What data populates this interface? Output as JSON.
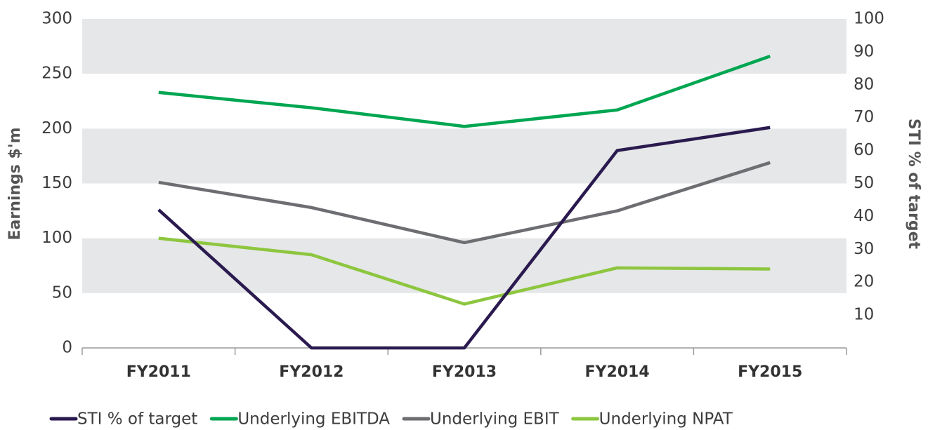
{
  "chart_data": {
    "type": "line",
    "ylabel": "Earnings $'m",
    "y2label": "STI % of target",
    "categories": [
      "FY2011",
      "FY2012",
      "FY2013",
      "FY2014",
      "FY2015"
    ],
    "series": [
      {
        "name": "STI % of target",
        "color": "#2a1a4f",
        "axis": "y2",
        "values": [
          42,
          0,
          0,
          60,
          67
        ]
      },
      {
        "name": "Underlying EBITDA",
        "color": "#00a651",
        "values": [
          233,
          219,
          202,
          217,
          266
        ]
      },
      {
        "name": "Underlying EBIT",
        "color": "#6d6e71",
        "values": [
          151,
          128,
          96,
          125,
          169
        ]
      },
      {
        "name": "Underlying NPAT",
        "color": "#8dc63f",
        "values": [
          100,
          85,
          40,
          73,
          72
        ]
      }
    ],
    "ylim": [
      0,
      300
    ],
    "yticks": [
      0,
      50,
      100,
      150,
      200,
      250,
      300
    ],
    "y2lim": [
      0,
      100
    ],
    "y2ticks": [
      10,
      20,
      30,
      40,
      50,
      60,
      70,
      80,
      90,
      100
    ],
    "grid": true,
    "legend": "bottom"
  }
}
